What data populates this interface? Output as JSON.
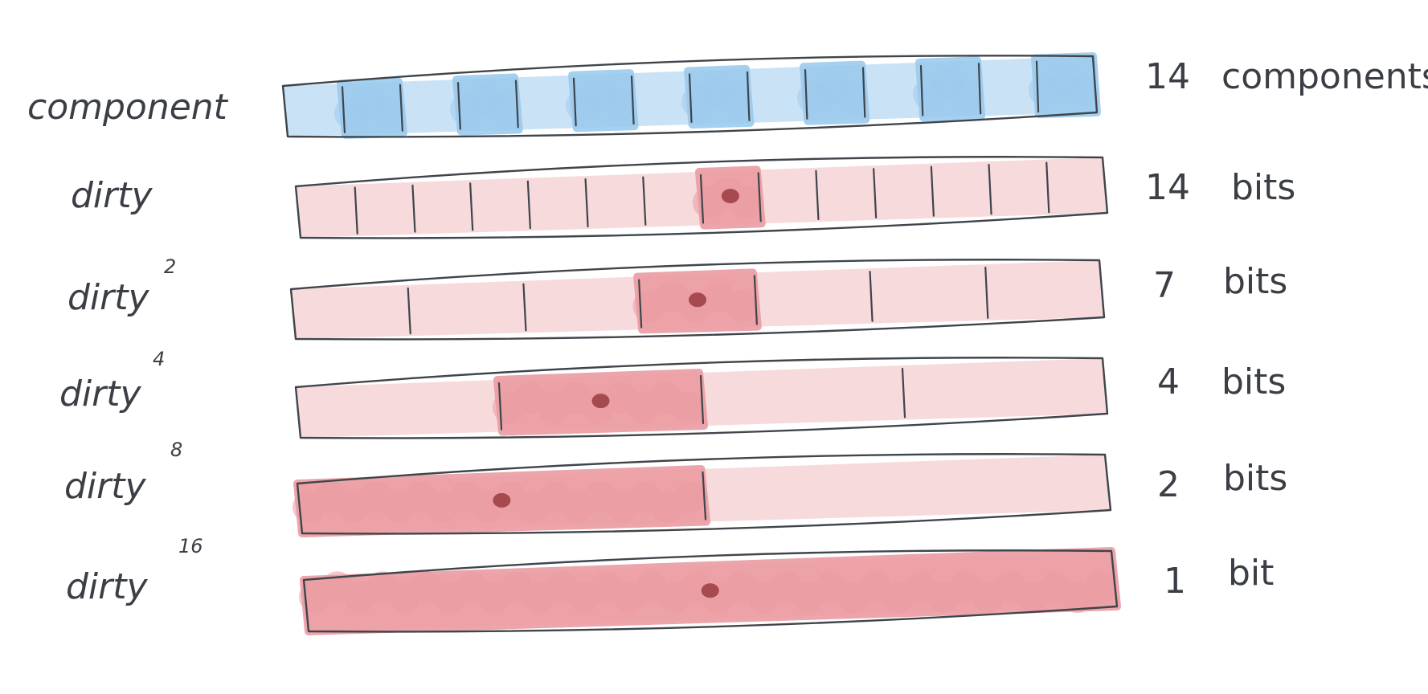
{
  "colors": {
    "component_fill": "#c6e0f5",
    "component_blob": "#9ccbee",
    "dirty_fill": "#f7d8da",
    "dirty_mark": "#eb9ca2",
    "dot": "#9a3b42",
    "ink": "#3f454b"
  },
  "rows": [
    {
      "label": "component",
      "superscript": "",
      "count": "14",
      "unit": "components",
      "cells": 14,
      "kind": "component",
      "shaded_cells": [
        1,
        3,
        5,
        7,
        9,
        11,
        13
      ],
      "dot_cell": null
    },
    {
      "label": "dirty",
      "superscript": "",
      "count": "14",
      "unit": "bits",
      "cells": 14,
      "kind": "dirty",
      "shaded_cells": [
        7
      ],
      "dot_cell": 7
    },
    {
      "label": "dirty",
      "superscript": "2",
      "count": "7",
      "unit": "bits",
      "cells": 7,
      "kind": "dirty",
      "shaded_cells": [
        3
      ],
      "dot_cell": 3
    },
    {
      "label": "dirty",
      "superscript": "4",
      "count": "4",
      "unit": "bits",
      "cells": 4,
      "kind": "dirty",
      "shaded_cells": [
        1
      ],
      "dot_cell": 1
    },
    {
      "label": "dirty",
      "superscript": "8",
      "count": "2",
      "unit": "bits",
      "cells": 2,
      "kind": "dirty",
      "shaded_cells": [
        0
      ],
      "dot_cell": 0
    },
    {
      "label": "dirty",
      "superscript": "16",
      "count": "1",
      "unit": "bit",
      "cells": 1,
      "kind": "dirty",
      "shaded_cells": [
        0
      ],
      "dot_cell": 0
    }
  ]
}
